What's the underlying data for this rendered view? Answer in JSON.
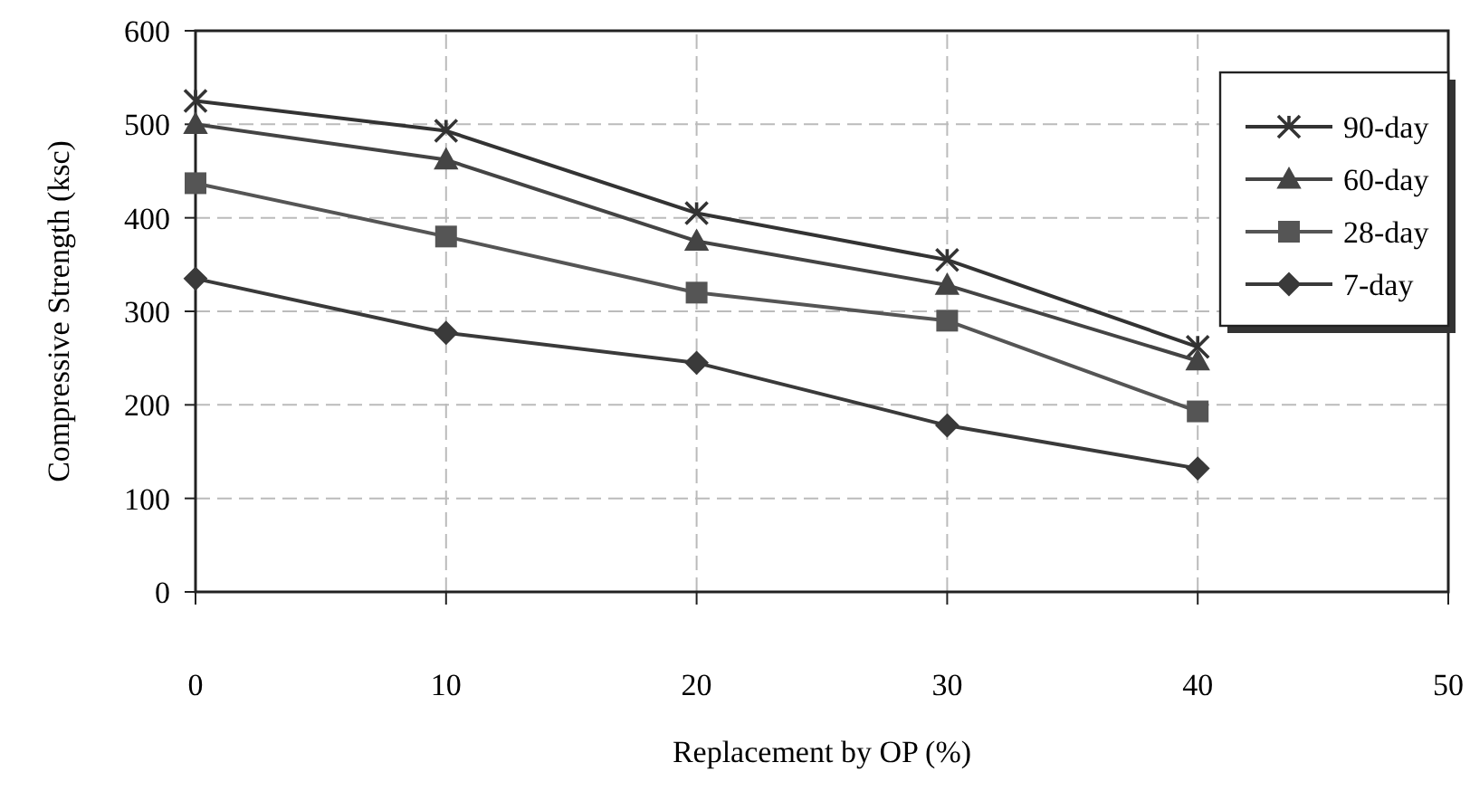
{
  "chart_data": {
    "type": "line",
    "xlabel": "Replacement by OP (%)",
    "ylabel": "Compressive Strength (ksc)",
    "x": [
      0,
      10,
      20,
      30,
      40
    ],
    "series": [
      {
        "name": "90-day",
        "color": "#333333",
        "marker": "cross",
        "values": [
          525,
          493,
          405,
          355,
          262
        ]
      },
      {
        "name": "60-day",
        "color": "#444444",
        "marker": "triangle",
        "values": [
          500,
          462,
          375,
          328,
          247
        ]
      },
      {
        "name": "28-day",
        "color": "#555555",
        "marker": "square",
        "values": [
          437,
          380,
          320,
          290,
          193
        ]
      },
      {
        "name": "7-day",
        "color": "#3a3a3a",
        "marker": "diamond",
        "values": [
          335,
          277,
          245,
          178,
          132
        ]
      }
    ],
    "xlim": [
      0,
      50
    ],
    "xticks": [
      0,
      10,
      20,
      30,
      40,
      50
    ],
    "ylim": [
      0,
      600
    ],
    "yticks": [
      0,
      100,
      200,
      300,
      400,
      500,
      600
    ],
    "grid": true,
    "legend": "top right"
  }
}
